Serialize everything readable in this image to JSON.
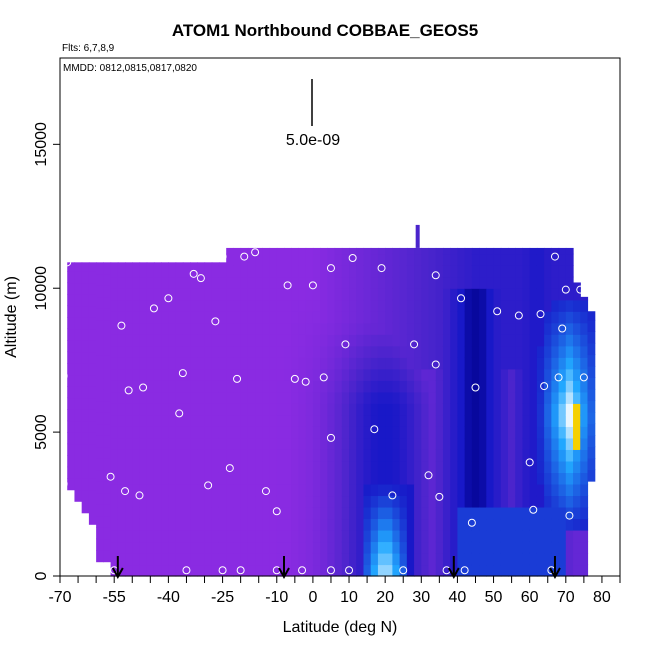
{
  "chart_data": {
    "type": "heatmap",
    "title": "ATOM1 Northbound COBBAE_GEOS5",
    "flights_label": "Flts: 6,7,8,9",
    "dates_label": "MMDD: 0812,0815,0817,0820",
    "xlabel": "Latitude (deg N)",
    "ylabel": "Altitude (m)",
    "xlim": [
      -70,
      85
    ],
    "ylim": [
      0,
      18000
    ],
    "x_major_ticks": [
      -70,
      -55,
      -40,
      -25,
      -10,
      0,
      10,
      20,
      30,
      40,
      50,
      60,
      70,
      80
    ],
    "x_minor_ticks": [
      -65,
      -60,
      -50,
      -45,
      -35,
      -30,
      -20,
      -15,
      -5,
      5,
      15,
      25,
      35,
      45,
      55,
      65,
      75,
      85
    ],
    "y_ticks": [
      0,
      5000,
      10000,
      15000
    ],
    "scale_bar_label": "5.0e-09",
    "colors": {
      "background_field": "#8a2be2",
      "mid": "#4a24cc",
      "low": "#1818c8",
      "dark": "#000088",
      "cyan": "#21a8ff",
      "white": "#e8f6ff",
      "yellow": "#f5d000",
      "marker": "#ffffff"
    },
    "field_extent": {
      "upper_left": {
        "lat_min": -68,
        "lat_max": 73,
        "alt_top": 10900
      },
      "upper_right": {
        "lat_min": -25,
        "lat_max": 72,
        "alt_top": 11400
      },
      "lower_bound_alt": 0
    },
    "hot_spots": [
      {
        "name": "northern cyan plume",
        "lat": [
          65,
          78
        ],
        "alt": [
          2000,
          9500
        ],
        "color": "cyan"
      },
      {
        "name": "northern core",
        "lat": [
          72,
          75
        ],
        "alt": [
          4000,
          6000
        ],
        "color": "yellow"
      },
      {
        "name": "tropical plume",
        "lat": [
          15,
          25
        ],
        "alt": [
          0,
          3000
        ],
        "color": "white"
      }
    ],
    "sample_points": [
      [
        -68,
        10900
      ],
      [
        -69,
        6950
      ],
      [
        -69,
        3200
      ],
      [
        -56,
        3450
      ],
      [
        -53,
        8700
      ],
      [
        -52,
        2950
      ],
      [
        -48,
        2800
      ],
      [
        -51,
        6450
      ],
      [
        -47,
        6550
      ],
      [
        -44,
        9300
      ],
      [
        -40,
        9650
      ],
      [
        -37,
        5650
      ],
      [
        -36,
        7050
      ],
      [
        -33,
        10500
      ],
      [
        -31,
        10350
      ],
      [
        -29,
        3150
      ],
      [
        -27,
        8850
      ],
      [
        -25,
        11100
      ],
      [
        -23,
        3750
      ],
      [
        -21,
        6850
      ],
      [
        -19,
        11100
      ],
      [
        -16,
        11250
      ],
      [
        -13,
        2950
      ],
      [
        -10,
        2250
      ],
      [
        -7,
        10100
      ],
      [
        -5,
        6850
      ],
      [
        -2,
        6750
      ],
      [
        0,
        10100
      ],
      [
        3,
        6900
      ],
      [
        5,
        10700
      ],
      [
        5,
        4800
      ],
      [
        9,
        8050
      ],
      [
        11,
        11050
      ],
      [
        17,
        5100
      ],
      [
        19,
        10700
      ],
      [
        22,
        2800
      ],
      [
        28,
        8050
      ],
      [
        32,
        3500
      ],
      [
        34,
        7350
      ],
      [
        34,
        10450
      ],
      [
        35,
        2750
      ],
      [
        41,
        9650
      ],
      [
        45,
        6550
      ],
      [
        44,
        1850
      ],
      [
        51,
        9200
      ],
      [
        57,
        9050
      ],
      [
        60,
        3950
      ],
      [
        61,
        2300
      ],
      [
        63,
        9100
      ],
      [
        64,
        6600
      ],
      [
        67,
        11100
      ],
      [
        68,
        6900
      ],
      [
        69,
        8600
      ],
      [
        70,
        9950
      ],
      [
        71,
        2100
      ],
      [
        74,
        9950
      ],
      [
        75,
        6900
      ],
      [
        -55,
        200
      ],
      [
        -35,
        200
      ],
      [
        -25,
        200
      ],
      [
        -20,
        200
      ],
      [
        -10,
        200
      ],
      [
        -3,
        200
      ],
      [
        5,
        200
      ],
      [
        10,
        200
      ],
      [
        25,
        200
      ],
      [
        37,
        200
      ],
      [
        42,
        200
      ],
      [
        66,
        200
      ]
    ],
    "flight_arrows_lat": [
      -54,
      -8,
      39,
      67
    ]
  }
}
